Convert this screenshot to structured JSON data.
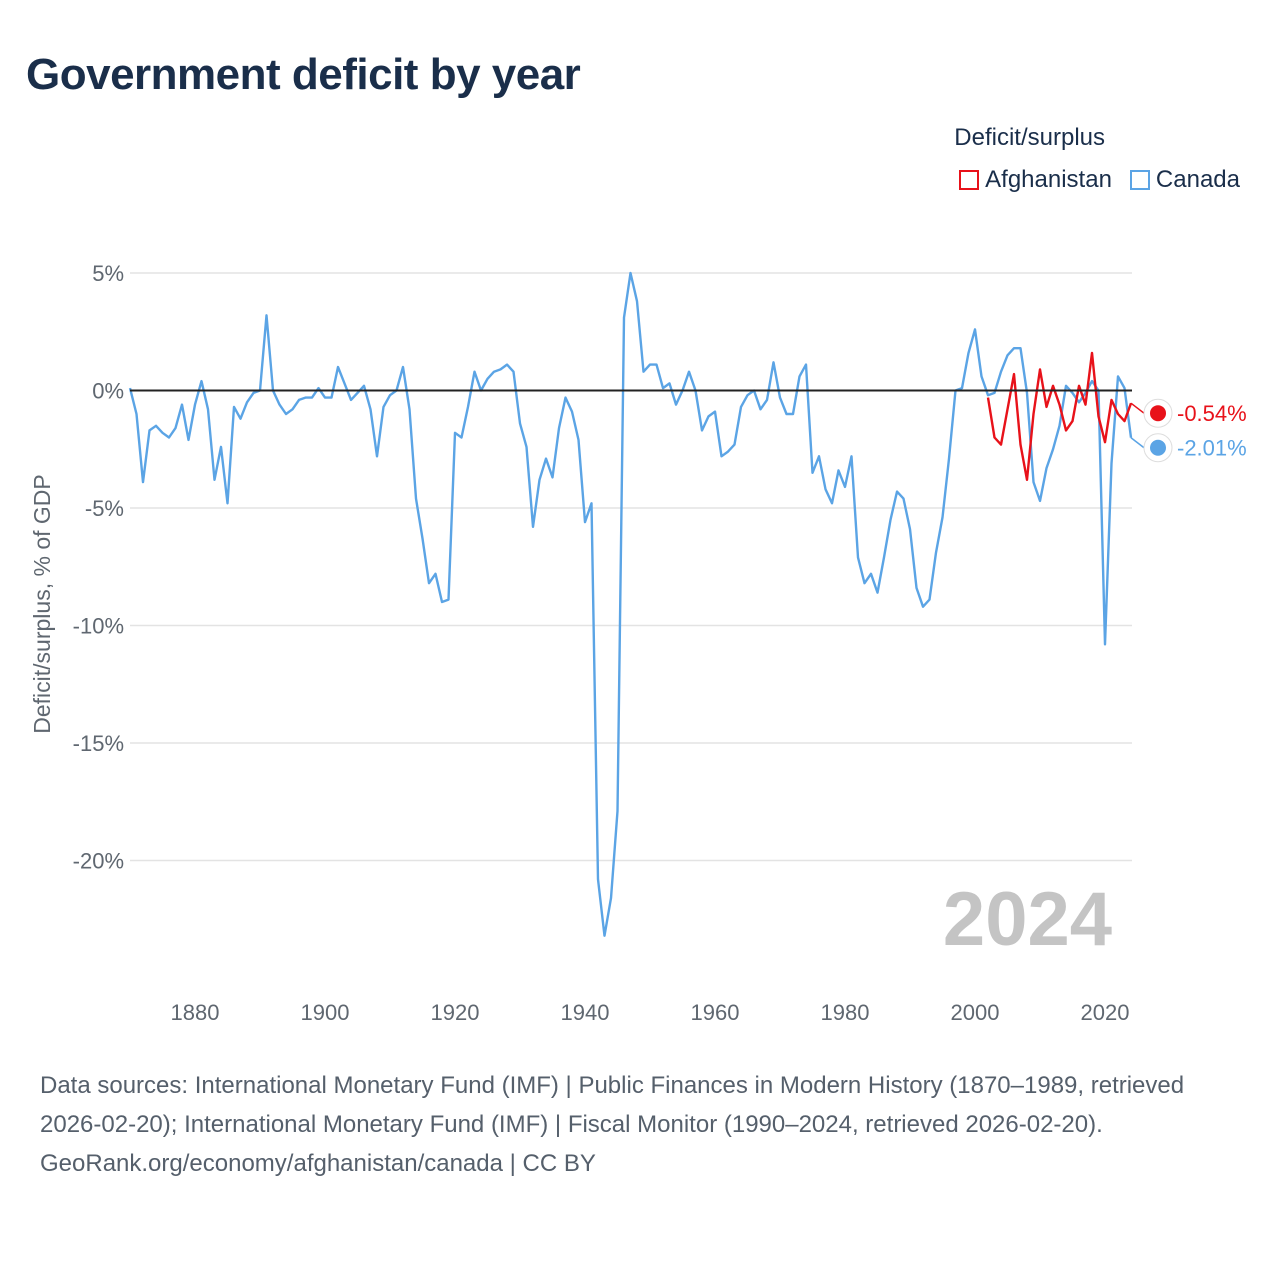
{
  "title": "Government deficit by year",
  "legend": {
    "title": "Deficit/surplus",
    "items": [
      {
        "name": "Afghanistan",
        "color": "#e8121a"
      },
      {
        "name": "Canada",
        "color": "#5ba4e5"
      }
    ]
  },
  "footer": {
    "sources": "Data sources: International Monetary Fund (IMF) | Public Finances in Modern History (1870–1989, retrieved 2026-02-20); International Monetary Fund (IMF) | Fiscal Monitor (1990–2024, retrieved 2026-02-20).",
    "credit": "GeoRank.org/economy/afghanistan/canada | CC BY"
  },
  "chart_data": {
    "type": "line",
    "title": "Government deficit by year",
    "xlabel": "",
    "ylabel": "Deficit/surplus, % of GDP",
    "xlim": [
      1870,
      2024
    ],
    "ylim": [
      -24.5,
      5.5
    ],
    "x_ticks": [
      1880,
      1900,
      1920,
      1940,
      1960,
      1980,
      2000,
      2020
    ],
    "x_tick_labels": [
      "1880",
      "1900",
      "1920",
      "1940",
      "1960",
      "1980",
      "2000",
      "2020"
    ],
    "y_ticks": [
      5,
      0,
      -5,
      -10,
      -15,
      -20
    ],
    "y_tick_labels": [
      "5%",
      "0%",
      "-5%",
      "-10%",
      "-15%",
      "-20%"
    ],
    "zero_line": true,
    "current_year_label": "2024",
    "series": [
      {
        "name": "Canada",
        "color": "#5ba4e5",
        "end_label": "-2.01%",
        "points": [
          [
            1870,
            0.1
          ],
          [
            1871,
            -1.0
          ],
          [
            1872,
            -3.9
          ],
          [
            1873,
            -1.7
          ],
          [
            1874,
            -1.5
          ],
          [
            1875,
            -1.8
          ],
          [
            1876,
            -2.0
          ],
          [
            1877,
            -1.6
          ],
          [
            1878,
            -0.6
          ],
          [
            1879,
            -2.1
          ],
          [
            1880,
            -0.6
          ],
          [
            1881,
            0.4
          ],
          [
            1882,
            -0.8
          ],
          [
            1883,
            -3.8
          ],
          [
            1884,
            -2.4
          ],
          [
            1885,
            -4.8
          ],
          [
            1886,
            -0.7
          ],
          [
            1887,
            -1.2
          ],
          [
            1888,
            -0.5
          ],
          [
            1889,
            -0.1
          ],
          [
            1890,
            0.0
          ],
          [
            1891,
            3.2
          ],
          [
            1892,
            0.0
          ],
          [
            1893,
            -0.6
          ],
          [
            1894,
            -1.0
          ],
          [
            1895,
            -0.8
          ],
          [
            1896,
            -0.4
          ],
          [
            1897,
            -0.3
          ],
          [
            1898,
            -0.3
          ],
          [
            1899,
            0.1
          ],
          [
            1900,
            -0.3
          ],
          [
            1901,
            -0.3
          ],
          [
            1902,
            1.0
          ],
          [
            1903,
            0.3
          ],
          [
            1904,
            -0.4
          ],
          [
            1905,
            -0.1
          ],
          [
            1906,
            0.2
          ],
          [
            1907,
            -0.8
          ],
          [
            1908,
            -2.8
          ],
          [
            1909,
            -0.7
          ],
          [
            1910,
            -0.2
          ],
          [
            1911,
            0.0
          ],
          [
            1912,
            1.0
          ],
          [
            1913,
            -0.8
          ],
          [
            1914,
            -4.6
          ],
          [
            1915,
            -6.3
          ],
          [
            1916,
            -8.2
          ],
          [
            1917,
            -7.8
          ],
          [
            1918,
            -9.0
          ],
          [
            1919,
            -8.9
          ],
          [
            1920,
            -1.8
          ],
          [
            1921,
            -2.0
          ],
          [
            1922,
            -0.7
          ],
          [
            1923,
            0.8
          ],
          [
            1924,
            0.0
          ],
          [
            1925,
            0.5
          ],
          [
            1926,
            0.8
          ],
          [
            1927,
            0.9
          ],
          [
            1928,
            1.1
          ],
          [
            1929,
            0.8
          ],
          [
            1930,
            -1.4
          ],
          [
            1931,
            -2.4
          ],
          [
            1932,
            -5.8
          ],
          [
            1933,
            -3.8
          ],
          [
            1934,
            -2.9
          ],
          [
            1935,
            -3.7
          ],
          [
            1936,
            -1.6
          ],
          [
            1937,
            -0.3
          ],
          [
            1938,
            -0.9
          ],
          [
            1939,
            -2.1
          ],
          [
            1940,
            -5.6
          ],
          [
            1941,
            -4.8
          ],
          [
            1942,
            -20.8
          ],
          [
            1943,
            -23.2
          ],
          [
            1944,
            -21.6
          ],
          [
            1945,
            -17.9
          ],
          [
            1946,
            3.1
          ],
          [
            1947,
            5.0
          ],
          [
            1948,
            3.8
          ],
          [
            1949,
            0.8
          ],
          [
            1950,
            1.1
          ],
          [
            1951,
            1.1
          ],
          [
            1952,
            0.1
          ],
          [
            1953,
            0.3
          ],
          [
            1954,
            -0.6
          ],
          [
            1955,
            0.0
          ],
          [
            1956,
            0.8
          ],
          [
            1957,
            0.0
          ],
          [
            1958,
            -1.7
          ],
          [
            1959,
            -1.1
          ],
          [
            1960,
            -0.9
          ],
          [
            1961,
            -2.8
          ],
          [
            1962,
            -2.6
          ],
          [
            1963,
            -2.3
          ],
          [
            1964,
            -0.7
          ],
          [
            1965,
            -0.2
          ],
          [
            1966,
            0.0
          ],
          [
            1967,
            -0.8
          ],
          [
            1968,
            -0.4
          ],
          [
            1969,
            1.2
          ],
          [
            1970,
            -0.3
          ],
          [
            1971,
            -1.0
          ],
          [
            1972,
            -1.0
          ],
          [
            1973,
            0.6
          ],
          [
            1974,
            1.1
          ],
          [
            1975,
            -3.5
          ],
          [
            1976,
            -2.8
          ],
          [
            1977,
            -4.2
          ],
          [
            1978,
            -4.8
          ],
          [
            1979,
            -3.4
          ],
          [
            1980,
            -4.1
          ],
          [
            1981,
            -2.8
          ],
          [
            1982,
            -7.1
          ],
          [
            1983,
            -8.2
          ],
          [
            1984,
            -7.8
          ],
          [
            1985,
            -8.6
          ],
          [
            1986,
            -7.1
          ],
          [
            1987,
            -5.5
          ],
          [
            1988,
            -4.3
          ],
          [
            1989,
            -4.6
          ],
          [
            1990,
            -5.9
          ],
          [
            1991,
            -8.4
          ],
          [
            1992,
            -9.2
          ],
          [
            1993,
            -8.9
          ],
          [
            1994,
            -6.9
          ],
          [
            1995,
            -5.4
          ],
          [
            1996,
            -2.9
          ],
          [
            1997,
            0.0
          ],
          [
            1998,
            0.1
          ],
          [
            1999,
            1.6
          ],
          [
            2000,
            2.6
          ],
          [
            2001,
            0.6
          ],
          [
            2002,
            -0.2
          ],
          [
            2003,
            -0.1
          ],
          [
            2004,
            0.8
          ],
          [
            2005,
            1.5
          ],
          [
            2006,
            1.8
          ],
          [
            2007,
            1.8
          ],
          [
            2008,
            -0.1
          ],
          [
            2009,
            -3.9
          ],
          [
            2010,
            -4.7
          ],
          [
            2011,
            -3.3
          ],
          [
            2012,
            -2.5
          ],
          [
            2013,
            -1.5
          ],
          [
            2014,
            0.2
          ],
          [
            2015,
            -0.1
          ],
          [
            2016,
            -0.5
          ],
          [
            2017,
            -0.1
          ],
          [
            2018,
            0.4
          ],
          [
            2019,
            0.0
          ],
          [
            2020,
            -10.8
          ],
          [
            2021,
            -3.1
          ],
          [
            2022,
            0.6
          ],
          [
            2023,
            0.1
          ],
          [
            2024,
            -2.01
          ]
        ]
      },
      {
        "name": "Afghanistan",
        "color": "#e8121a",
        "end_label": "-0.54%",
        "points": [
          [
            2002,
            -0.3
          ],
          [
            2003,
            -2.0
          ],
          [
            2004,
            -2.3
          ],
          [
            2005,
            -0.8
          ],
          [
            2006,
            0.7
          ],
          [
            2007,
            -2.3
          ],
          [
            2008,
            -3.8
          ],
          [
            2009,
            -1.0
          ],
          [
            2010,
            0.9
          ],
          [
            2011,
            -0.7
          ],
          [
            2012,
            0.2
          ],
          [
            2013,
            -0.6
          ],
          [
            2014,
            -1.7
          ],
          [
            2015,
            -1.3
          ],
          [
            2016,
            0.2
          ],
          [
            2017,
            -0.6
          ],
          [
            2018,
            1.6
          ],
          [
            2019,
            -1.1
          ],
          [
            2020,
            -2.2
          ],
          [
            2021,
            -0.4
          ],
          [
            2022,
            -1.0
          ],
          [
            2023,
            -1.3
          ],
          [
            2024,
            -0.54
          ]
        ]
      }
    ]
  }
}
